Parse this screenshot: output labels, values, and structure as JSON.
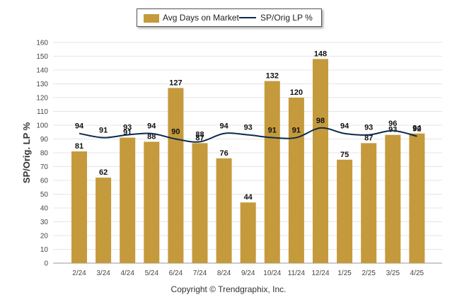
{
  "chart_data": {
    "type": "bar",
    "categories": [
      "2/24",
      "3/24",
      "4/24",
      "5/24",
      "6/24",
      "7/24",
      "8/24",
      "9/24",
      "10/24",
      "11/24",
      "12/24",
      "1/25",
      "2/25",
      "3/25",
      "4/25"
    ],
    "series": [
      {
        "name": "Avg Days on Market",
        "type": "bar",
        "color": "#C49A3C",
        "values": [
          81,
          62,
          91,
          88,
          127,
          87,
          76,
          44,
          132,
          120,
          148,
          75,
          87,
          93,
          94
        ]
      },
      {
        "name": "SP/Orig LP %",
        "type": "line",
        "color": "#0B2A4A",
        "values": [
          94,
          91,
          93,
          94,
          90,
          88,
          94,
          93,
          91,
          91,
          98,
          94,
          93,
          96,
          92
        ]
      }
    ],
    "ylabel": "SP/Orig. LP %",
    "ylim": [
      0,
      160
    ],
    "yticks": [
      0,
      10,
      20,
      30,
      40,
      50,
      60,
      70,
      80,
      90,
      100,
      110,
      120,
      130,
      140,
      150,
      160
    ],
    "grid": true,
    "legend_position": "top-center"
  },
  "footer": "Copyright © Trendgraphix, Inc."
}
